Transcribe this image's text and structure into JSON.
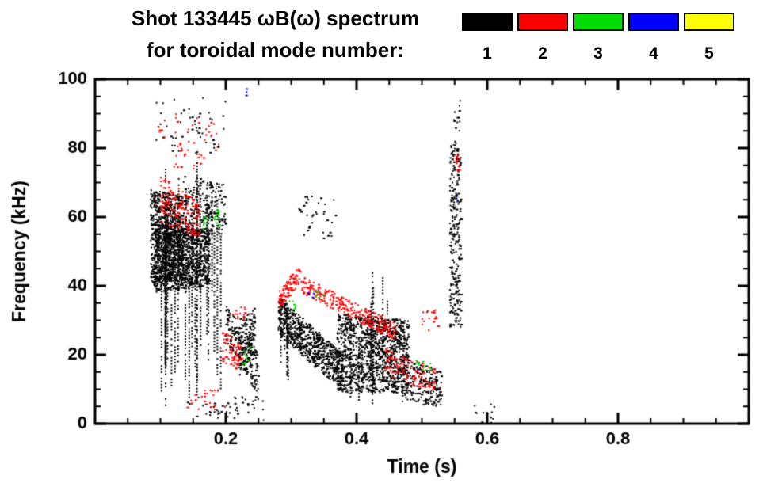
{
  "header": {
    "title_line1": "Shot 133445 ωB(ω) spectrum",
    "title_line2": "for toroidal mode number:"
  },
  "chart_data": {
    "type": "scatter",
    "title": "Shot 133445 ωB(ω) spectrum for toroidal mode number:",
    "xlabel": "Time (s)",
    "ylabel": "Frequency (kHz)",
    "xlim": [
      0.0,
      1.0
    ],
    "ylim": [
      0,
      100
    ],
    "x_major_ticks": [
      0.2,
      0.4,
      0.6,
      0.8
    ],
    "x_tick_labels": [
      "0.2",
      "0.4",
      "0.6",
      "0.8"
    ],
    "x_minor_step": 0.05,
    "y_major_ticks": [
      0,
      20,
      40,
      60,
      80,
      100
    ],
    "y_tick_labels": [
      "0",
      "20",
      "40",
      "60",
      "80",
      "100"
    ],
    "y_minor_step": 5,
    "grid": false,
    "legend_position": "top-right",
    "legend": [
      {
        "label": "1",
        "color": "#000000"
      },
      {
        "label": "2",
        "color": "#ff0000"
      },
      {
        "label": "3",
        "color": "#00dd00"
      },
      {
        "label": "4",
        "color": "#0000ff"
      },
      {
        "label": "5",
        "color": "#ffff00"
      }
    ],
    "series": [
      {
        "name": "n=1",
        "color": "#000000",
        "clusters": [
          {
            "type": "blob",
            "t": [
              0.085,
              0.135
            ],
            "f0": [
              40,
              68
            ],
            "f1": [
              42,
              66
            ],
            "n": 700
          },
          {
            "type": "blob",
            "t": [
              0.09,
              0.175
            ],
            "f0": [
              38,
              58
            ],
            "f1": [
              40,
              56
            ],
            "n": 1000
          },
          {
            "type": "vstreaks",
            "t": [
              0.1,
              0.2
            ],
            "f": [
              4,
              76
            ],
            "k": 28
          },
          {
            "type": "blob",
            "t": [
              0.09,
              0.2
            ],
            "f0": [
              78,
              95
            ],
            "f1": [
              78,
              95
            ],
            "n": 50
          },
          {
            "type": "blob",
            "t": [
              0.135,
              0.2
            ],
            "f0": [
              55,
              72
            ],
            "f1": [
              55,
              70
            ],
            "n": 200
          },
          {
            "type": "blob",
            "t": [
              0.2,
              0.25
            ],
            "f0": [
              24,
              35
            ],
            "f1": [
              8,
              20
            ],
            "n": 180
          },
          {
            "type": "blob",
            "t": [
              0.22,
              0.245
            ],
            "f0": [
              12,
              30
            ],
            "f1": [
              20,
              34
            ],
            "n": 120
          },
          {
            "type": "blob",
            "t": [
              0.28,
              0.38
            ],
            "f0": [
              26,
              37
            ],
            "f1": [
              9,
              20
            ],
            "n": 700
          },
          {
            "type": "vstreaks",
            "t": [
              0.283,
              0.3
            ],
            "f": [
              8,
              37
            ],
            "k": 6
          },
          {
            "type": "blob",
            "t": [
              0.37,
              0.48
            ],
            "f0": [
              9,
              32
            ],
            "f1": [
              9,
              30
            ],
            "n": 1100
          },
          {
            "type": "vstreaks",
            "t": [
              0.38,
              0.46
            ],
            "f": [
              5,
              45
            ],
            "k": 10
          },
          {
            "type": "blob",
            "t": [
              0.47,
              0.53
            ],
            "f0": [
              6,
              20
            ],
            "f1": [
              5,
              15
            ],
            "n": 200
          },
          {
            "type": "blob",
            "t": [
              0.543,
              0.56
            ],
            "f0": [
              28,
              82
            ],
            "f1": [
              28,
              82
            ],
            "n": 260
          },
          {
            "type": "blob",
            "t": [
              0.548,
              0.56
            ],
            "f0": [
              85,
              94
            ],
            "f1": [
              85,
              94
            ],
            "n": 12
          },
          {
            "type": "blob",
            "t": [
              0.58,
              0.615
            ],
            "f0": [
              0,
              6
            ],
            "f1": [
              0,
              6
            ],
            "n": 12
          },
          {
            "type": "blob",
            "t": [
              0.31,
              0.37
            ],
            "f0": [
              52,
              66
            ],
            "f1": [
              52,
              66
            ],
            "n": 35
          },
          {
            "type": "blob",
            "t": [
              0.14,
              0.26
            ],
            "f0": [
              1,
              8
            ],
            "f1": [
              1,
              8
            ],
            "n": 50
          }
        ]
      },
      {
        "name": "n=2",
        "color": "#ff0000",
        "clusters": [
          {
            "type": "blob",
            "t": [
              0.1,
              0.16
            ],
            "f0": [
              58,
              72
            ],
            "f1": [
              54,
              64
            ],
            "n": 160
          },
          {
            "type": "blob",
            "t": [
              0.12,
              0.19
            ],
            "f0": [
              74,
              90
            ],
            "f1": [
              74,
              88
            ],
            "n": 45
          },
          {
            "type": "blob",
            "t": [
              0.095,
              0.11
            ],
            "f0": [
              82,
              88
            ],
            "f1": [
              82,
              88
            ],
            "n": 10
          },
          {
            "type": "blob",
            "t": [
              0.195,
              0.225
            ],
            "f0": [
              18,
              28
            ],
            "f1": [
              14,
              22
            ],
            "n": 70
          },
          {
            "type": "blob",
            "t": [
              0.21,
              0.235
            ],
            "f0": [
              30,
              34
            ],
            "f1": [
              30,
              34
            ],
            "n": 15
          },
          {
            "type": "blob",
            "t": [
              0.28,
              0.315
            ],
            "f0": [
              33,
              38
            ],
            "f1": [
              41,
              47
            ],
            "n": 90
          },
          {
            "type": "blob",
            "t": [
              0.315,
              0.46
            ],
            "f0": [
              38,
              43
            ],
            "f1": [
              24,
              29
            ],
            "n": 260
          },
          {
            "type": "blob",
            "t": [
              0.44,
              0.52
            ],
            "f0": [
              14,
              22
            ],
            "f1": [
              9,
              16
            ],
            "n": 110
          },
          {
            "type": "blob",
            "t": [
              0.5,
              0.525
            ],
            "f0": [
              27,
              33
            ],
            "f1": [
              27,
              33
            ],
            "n": 18
          },
          {
            "type": "blob",
            "t": [
              0.14,
              0.2
            ],
            "f0": [
              4,
              10
            ],
            "f1": [
              4,
              10
            ],
            "n": 25
          },
          {
            "type": "blob",
            "t": [
              0.552,
              0.56
            ],
            "f0": [
              72,
              79
            ],
            "f1": [
              72,
              79
            ],
            "n": 14
          }
        ]
      },
      {
        "name": "n=3",
        "color": "#00cc00",
        "clusters": [
          {
            "type": "blob",
            "t": [
              0.165,
              0.19
            ],
            "f0": [
              56,
              63
            ],
            "f1": [
              56,
              62
            ],
            "n": 22
          },
          {
            "type": "blob",
            "t": [
              0.225,
              0.24
            ],
            "f0": [
              17,
              22
            ],
            "f1": [
              17,
              22
            ],
            "n": 10
          },
          {
            "type": "blob",
            "t": [
              0.295,
              0.31
            ],
            "f0": [
              32,
              36
            ],
            "f1": [
              32,
              36
            ],
            "n": 8
          },
          {
            "type": "blob",
            "t": [
              0.49,
              0.515
            ],
            "f0": [
              15,
              20
            ],
            "f1": [
              15,
              20
            ],
            "n": 12
          },
          {
            "type": "blob",
            "t": [
              0.335,
              0.35
            ],
            "f0": [
              36,
              39
            ],
            "f1": [
              36,
              39
            ],
            "n": 5
          }
        ]
      },
      {
        "name": "n=4",
        "color": "#0000ff",
        "clusters": [
          {
            "type": "blob",
            "t": [
              0.228,
              0.236
            ],
            "f0": [
              95,
              98
            ],
            "f1": [
              95,
              98
            ],
            "n": 3
          },
          {
            "type": "blob",
            "t": [
              0.325,
              0.335
            ],
            "f0": [
              36,
              39
            ],
            "f1": [
              36,
              39
            ],
            "n": 3
          },
          {
            "type": "blob",
            "t": [
              0.545,
              0.555
            ],
            "f0": [
              62,
              66
            ],
            "f1": [
              62,
              66
            ],
            "n": 2
          }
        ]
      },
      {
        "name": "n=5",
        "color": "#ffff00",
        "clusters": []
      }
    ]
  }
}
